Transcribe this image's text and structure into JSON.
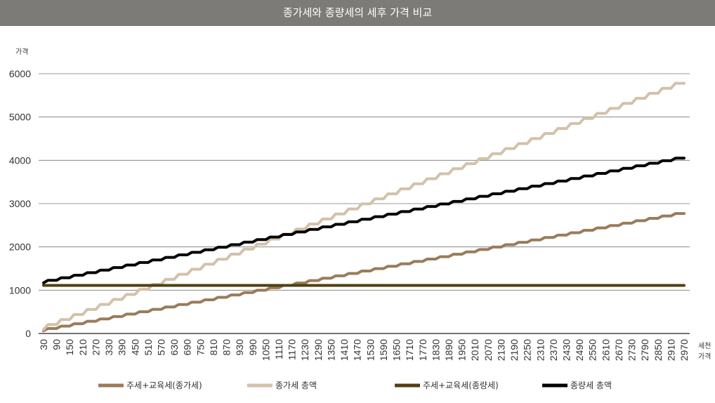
{
  "header": {
    "title": "종가세와 종량세의 세후 가격 비교"
  },
  "chart_data": {
    "type": "line",
    "title": "종가세와 종량세의 세후 가격 비교",
    "ylabel": "가격",
    "xlabel_line1": "세전",
    "xlabel_line2": "가격",
    "ylim": [
      0,
      6000
    ],
    "yticks": [
      0,
      1000,
      2000,
      3000,
      4000,
      5000,
      6000
    ],
    "x": [
      30,
      90,
      150,
      210,
      270,
      330,
      390,
      450,
      510,
      570,
      630,
      690,
      750,
      810,
      870,
      930,
      990,
      1050,
      1110,
      1170,
      1230,
      1290,
      1350,
      1410,
      1470,
      1530,
      1590,
      1650,
      1710,
      1770,
      1830,
      1890,
      1950,
      2010,
      2070,
      2130,
      2190,
      2250,
      2310,
      2370,
      2430,
      2490,
      2550,
      2610,
      2670,
      2730,
      2790,
      2850,
      2910,
      2970
    ],
    "grid": "horizontal",
    "legend_position": "bottom",
    "series": [
      {
        "name": "주세+교육세(종가세)",
        "color": "#9a7b5a",
        "start": 60,
        "end": 2770
      },
      {
        "name": "종가세 총액",
        "color": "#d3c1aa",
        "start": 90,
        "end": 5780
      },
      {
        "name": "주세+교육세(종량세)",
        "color": "#4f3f12",
        "start": 1110,
        "end": 1110
      },
      {
        "name": "종량세 총액",
        "color": "#000000",
        "start": 1170,
        "end": 4050
      }
    ]
  }
}
